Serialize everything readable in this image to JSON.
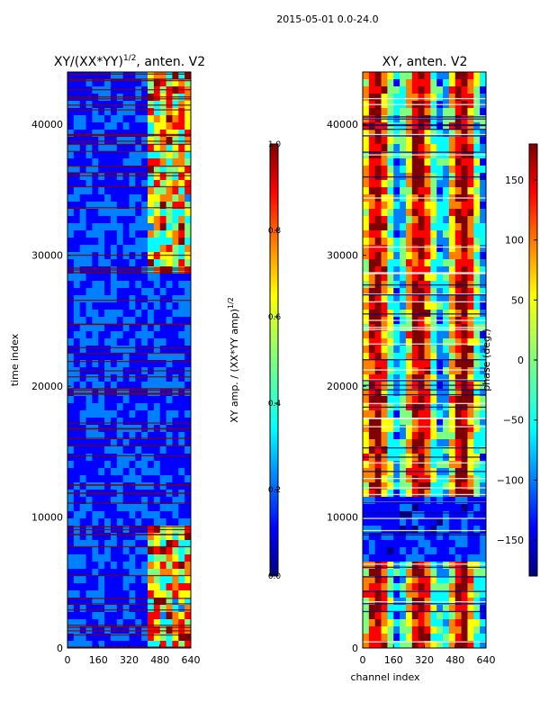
{
  "figure": {
    "suptitle": "2015-05-01 0.0-24.0"
  },
  "chart_data": [
    {
      "type": "heatmap",
      "title_main": "XY/(XX*YY)",
      "title_exp": "1/2",
      "title_tail": ", anten. V2",
      "xlabel": "",
      "ylabel": "time index",
      "xlim": [
        0,
        640
      ],
      "ylim": [
        0,
        44000
      ],
      "xticks": [
        0,
        160,
        320,
        480,
        640
      ],
      "yticks": [
        0,
        10000,
        20000,
        30000,
        40000
      ],
      "colormap": "jet",
      "colorbar": {
        "label_main": "XY amp. / (XX*YY amp)",
        "label_exp": "1/2",
        "range": [
          0.0,
          1.0
        ],
        "ticks": [
          "0.0",
          "0.2",
          "0.4",
          "0.6",
          "0.8",
          "1.0"
        ],
        "tick_values": [
          0.0,
          0.2,
          0.4,
          0.6,
          0.8,
          1.0
        ]
      }
    },
    {
      "type": "heatmap",
      "title": "XY, anten. V2",
      "xlabel": "channel index",
      "ylabel": "",
      "xlim": [
        0,
        640
      ],
      "ylim": [
        0,
        44000
      ],
      "xticks": [
        0,
        160,
        320,
        480,
        640
      ],
      "yticks": [
        0,
        10000,
        20000,
        30000,
        40000
      ],
      "colormap": "jet",
      "colorbar": {
        "label": "phase (deg.)",
        "range": [
          -180,
          180
        ],
        "ticks": [
          "150",
          "100",
          "50",
          "0",
          "−50",
          "−100",
          "−150"
        ],
        "tick_values": [
          150,
          100,
          50,
          0,
          -50,
          -100,
          -150
        ]
      }
    }
  ],
  "colors": {
    "jet": [
      "#00007f",
      "#0000ff",
      "#007fff",
      "#00ffff",
      "#7fff7f",
      "#ffff00",
      "#ff7f00",
      "#ff0000",
      "#7f0000"
    ]
  }
}
